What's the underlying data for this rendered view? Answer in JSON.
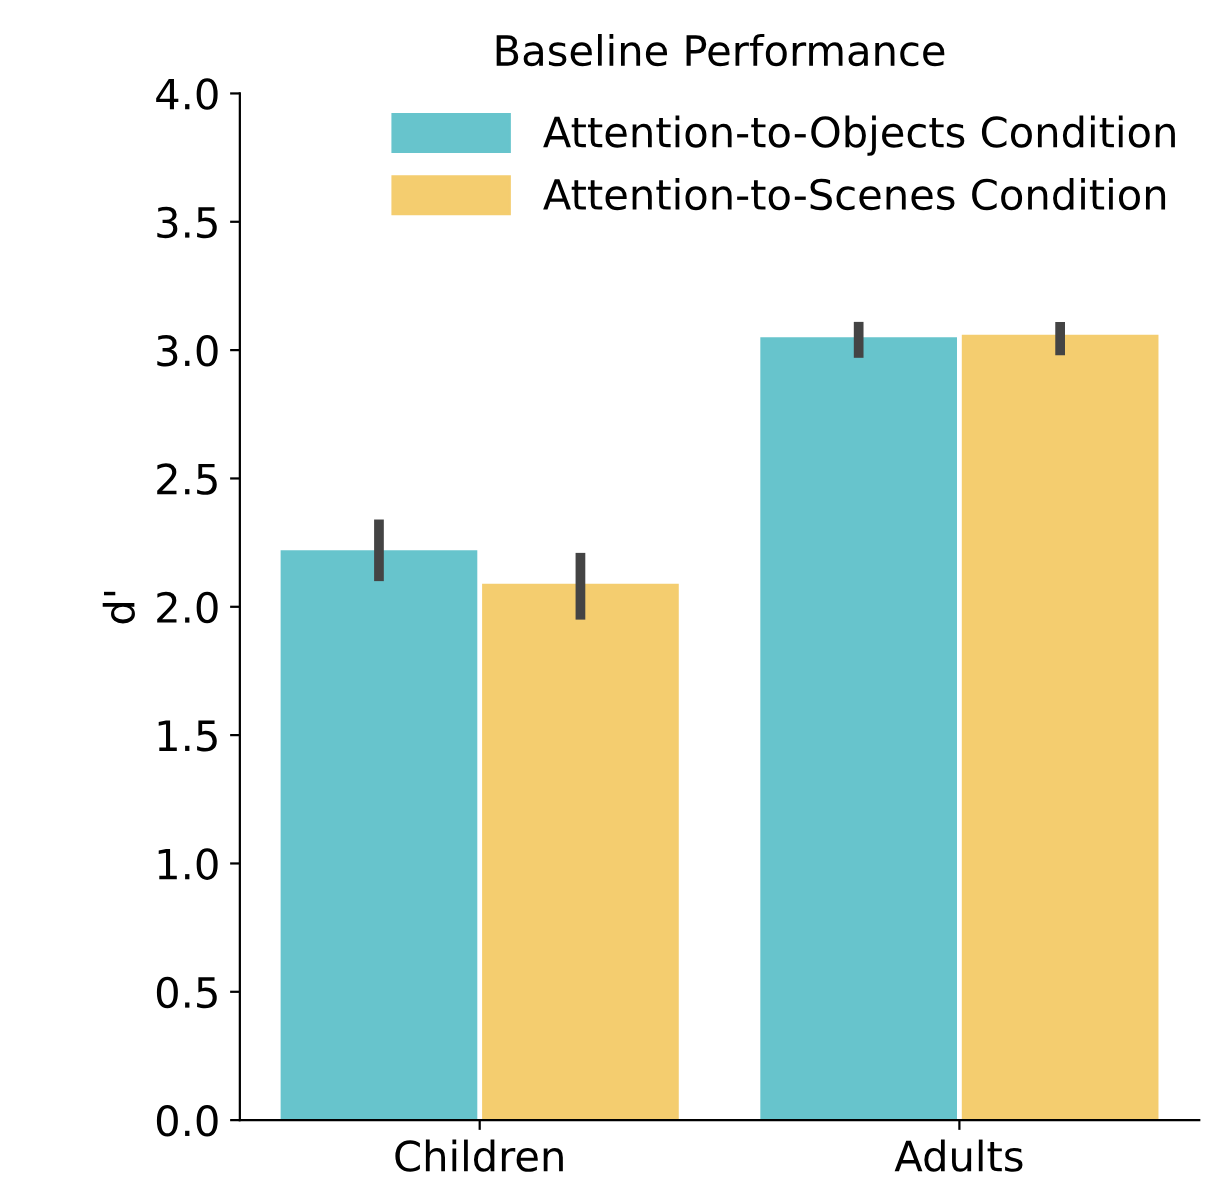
{
  "chart_data": {
    "type": "bar",
    "title": "Baseline Performance",
    "ylabel": "d'",
    "categories": [
      "Children",
      "Adults"
    ],
    "series": [
      {
        "name": "Attention-to-Objects Condition",
        "color": "#67c4cc",
        "values": [
          2.22,
          3.05
        ],
        "errors": [
          [
            2.1,
            2.34
          ],
          [
            2.97,
            3.11
          ]
        ]
      },
      {
        "name": "Attention-to-Scenes Condition",
        "color": "#f4cd6f",
        "values": [
          2.09,
          3.06
        ],
        "errors": [
          [
            1.95,
            2.21
          ],
          [
            2.98,
            3.11
          ]
        ]
      }
    ],
    "ylim": [
      0,
      4.0
    ],
    "yticks": [
      {
        "value": 0,
        "label": "0.0"
      },
      0.5,
      {
        "value": 1,
        "label": "1.0"
      },
      1.5,
      {
        "value": 2,
        "label": "2.0"
      },
      2.5,
      {
        "value": 3,
        "label": "3.0"
      },
      3.5,
      {
        "value": 4,
        "label": "4.0"
      }
    ],
    "grid": false,
    "legend": "top right"
  }
}
